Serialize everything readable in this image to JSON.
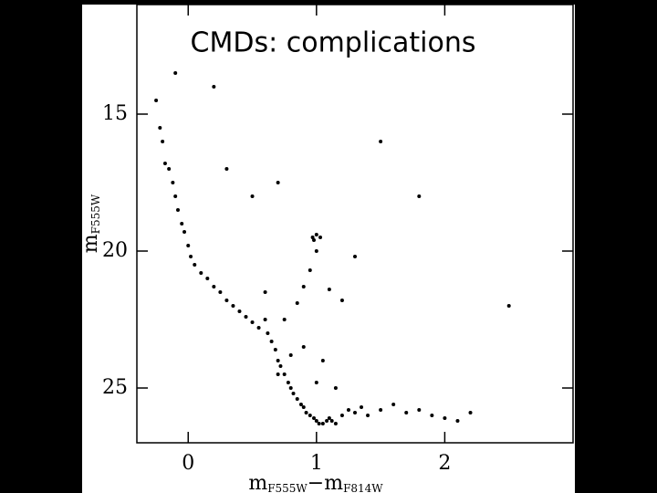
{
  "chart_data": {
    "type": "scatter",
    "title": "CMDs: complications",
    "x_label": {
      "main": "m",
      "sub": "F555W",
      "sep": "−m",
      "sub2": "F814W"
    },
    "y_label": {
      "main": "m",
      "sub": "F555W"
    },
    "x": [
      -0.25,
      -0.22,
      -0.2,
      -0.18,
      -0.15,
      -0.12,
      -0.1,
      -0.08,
      -0.05,
      -0.03,
      0.0,
      0.02,
      0.05,
      0.1,
      0.15,
      0.2,
      0.25,
      0.3,
      0.35,
      0.4,
      0.45,
      0.5,
      0.55,
      0.6,
      0.62,
      0.65,
      0.68,
      0.7,
      0.72,
      0.75,
      0.78,
      0.8,
      0.82,
      0.85,
      0.88,
      0.9,
      0.92,
      0.95,
      0.98,
      1.0,
      1.02,
      1.05,
      1.08,
      1.1,
      1.12,
      1.15,
      1.2,
      1.25,
      1.3,
      1.35,
      1.4,
      1.5,
      1.6,
      1.7,
      1.8,
      1.9,
      2.0,
      2.1,
      2.2,
      0.85,
      0.9,
      0.95,
      1.0,
      0.97,
      1.03,
      1.0,
      0.98,
      1.1,
      1.2,
      1.3,
      0.3,
      0.5,
      0.7,
      1.5,
      1.8,
      2.5,
      0.2,
      -0.1,
      0.6,
      0.75,
      0.9,
      1.05,
      1.15,
      0.8,
      0.7,
      1.0
    ],
    "values": [
      14.5,
      15.5,
      16,
      16.8,
      17,
      17.5,
      18,
      18.5,
      19,
      19.3,
      19.8,
      20.2,
      20.5,
      20.8,
      21,
      21.3,
      21.5,
      21.8,
      22,
      22.2,
      22.4,
      22.6,
      22.8,
      22.5,
      23,
      23.3,
      23.6,
      24,
      24.2,
      24.5,
      24.8,
      25,
      25.2,
      25.4,
      25.6,
      25.7,
      25.9,
      26,
      26.1,
      26.2,
      26.3,
      26.3,
      26.2,
      26.1,
      26.2,
      26.3,
      26.0,
      25.8,
      25.9,
      25.7,
      26.0,
      25.8,
      25.6,
      25.9,
      25.8,
      26.0,
      26.1,
      26.2,
      25.9,
      21.9,
      21.3,
      20.7,
      20.0,
      19.5,
      19.5,
      19.4,
      19.6,
      21.4,
      21.8,
      20.2,
      17,
      18,
      17.5,
      16,
      18,
      22,
      14,
      13.5,
      21.5,
      22.5,
      23.5,
      24,
      25,
      23.8,
      24.5,
      24.8
    ],
    "color": "#000000",
    "xlim": [
      -0.4,
      3.0
    ],
    "ylim": [
      27,
      11
    ],
    "xticks": [
      0,
      1,
      2
    ],
    "yticks": [
      15,
      20,
      25
    ]
  }
}
